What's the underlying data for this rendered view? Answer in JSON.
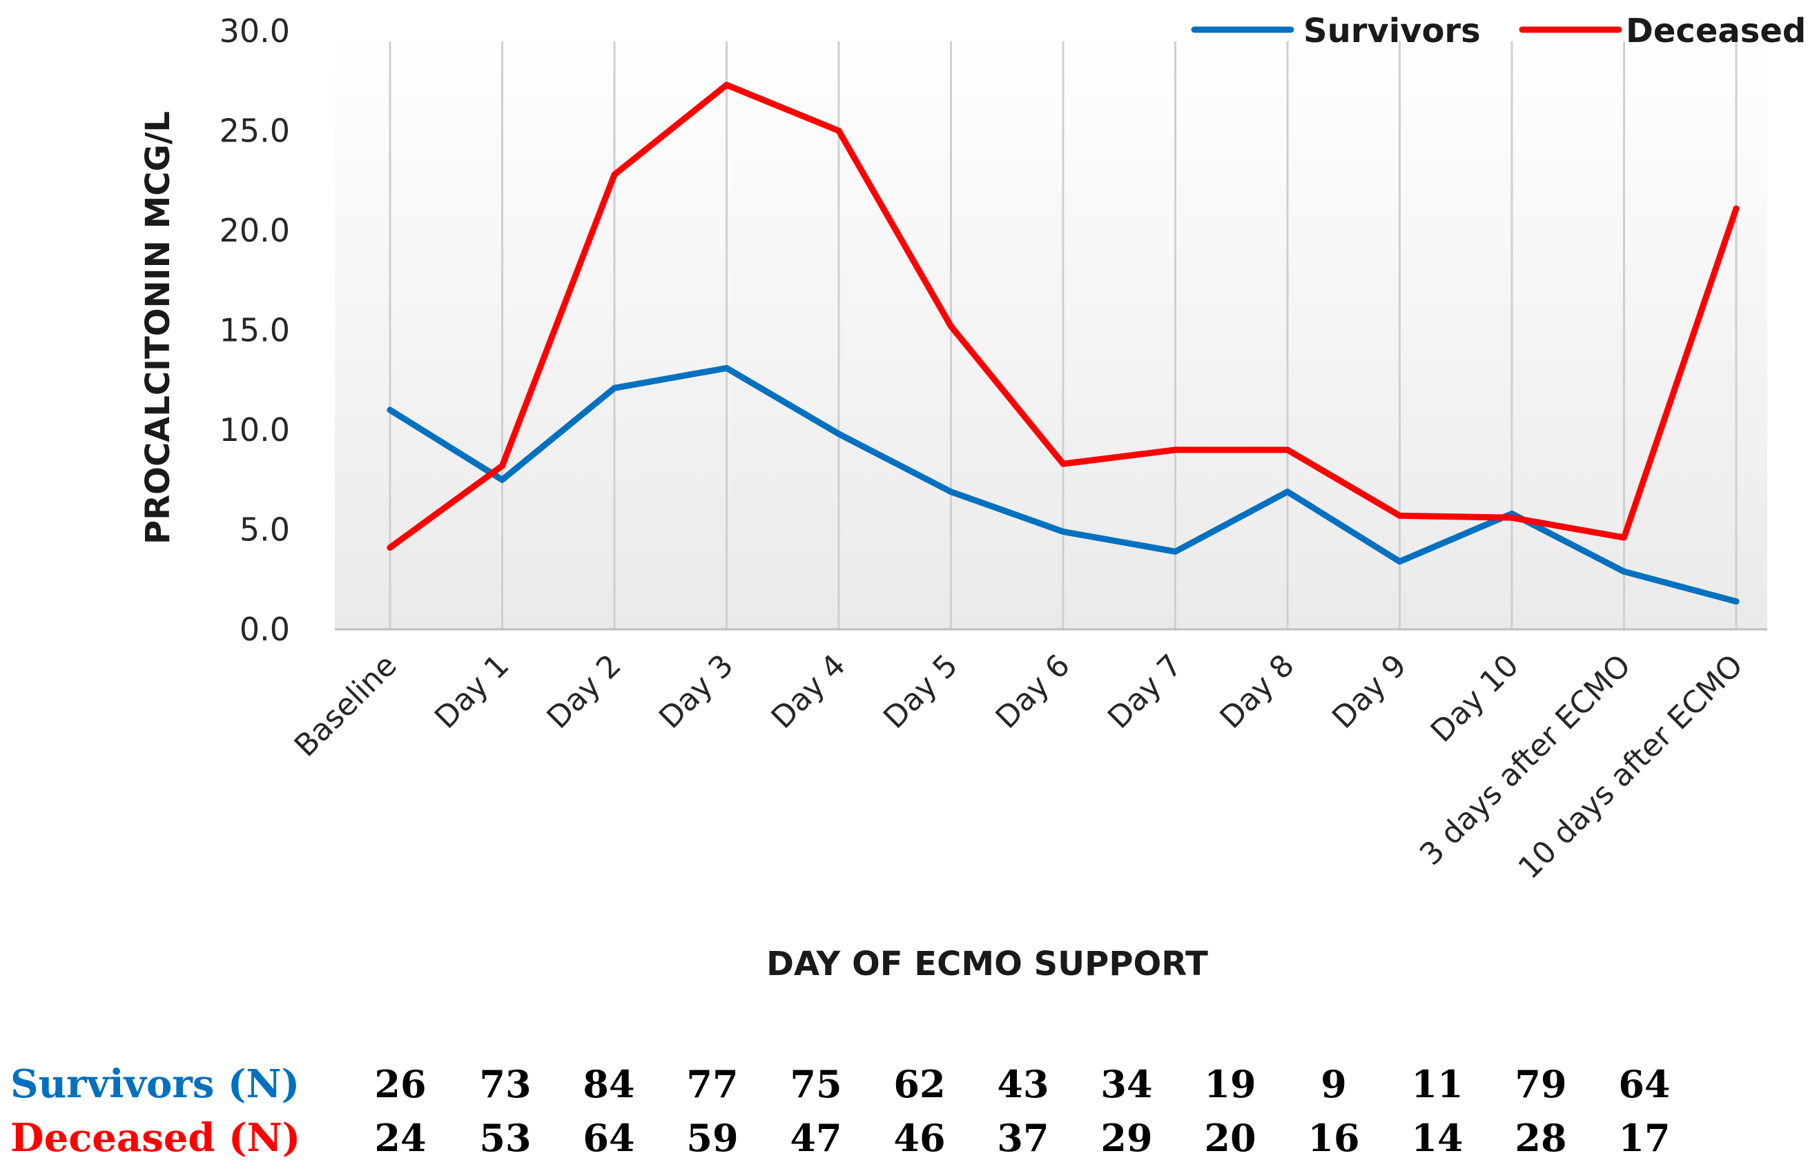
{
  "chart_data": {
    "type": "line",
    "title": "",
    "xlabel": "DAY OF ECMO SUPPORT",
    "ylabel": "PROCALCITONIN  MCG/L",
    "ylim": [
      0,
      30
    ],
    "yticks": [
      "0.0",
      "5.0",
      "10.0",
      "15.0",
      "20.0",
      "25.0",
      "30.0"
    ],
    "grid": "vertical",
    "legend_position": "top-right",
    "categories": [
      "Baseline",
      "Day 1",
      "Day 2",
      "Day 3",
      "Day 4",
      "Day 5",
      "Day 6",
      "Day 7",
      "Day 8",
      "Day 9",
      "Day 10",
      "3 days after ECMO",
      "10 days after ECMO"
    ],
    "series": [
      {
        "name": "Survivors",
        "color": "#0070C0",
        "values": [
          11.0,
          7.5,
          12.1,
          13.1,
          9.8,
          6.9,
          4.9,
          3.9,
          6.9,
          3.4,
          5.8,
          2.9,
          1.4
        ]
      },
      {
        "name": "Deceased",
        "color": "#FF0000",
        "values": [
          4.1,
          8.2,
          22.8,
          27.3,
          25.0,
          15.2,
          8.3,
          9.0,
          9.0,
          5.7,
          5.6,
          4.6,
          21.1
        ]
      }
    ]
  },
  "counts_table": {
    "rows": [
      {
        "label": "Survivors (N)",
        "color": "#0070C0",
        "values": [
          "26",
          "73",
          "84",
          "77",
          "75",
          "62",
          "43",
          "34",
          "19",
          "9",
          "11",
          "79",
          "64"
        ]
      },
      {
        "label": "Deceased (N)",
        "color": "#FF0000",
        "values": [
          "24",
          "53",
          "64",
          "59",
          "47",
          "46",
          "37",
          "29",
          "20",
          "16",
          "14",
          "28",
          "17"
        ]
      }
    ]
  }
}
